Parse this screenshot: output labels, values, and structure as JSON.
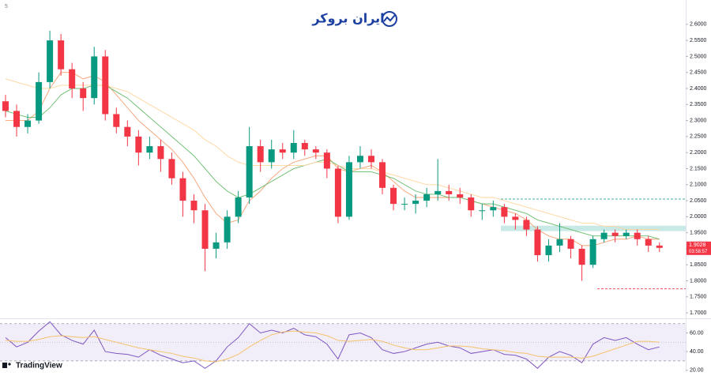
{
  "header": {
    "brand": "ایران بروکر",
    "platform": "TradingView",
    "interval": "5"
  },
  "chart_data": [
    {
      "type": "candlestick",
      "open": [
        2.36,
        2.33,
        2.28,
        2.3,
        2.42,
        2.55,
        2.46,
        2.4,
        2.37,
        2.5,
        2.32,
        2.28,
        2.25,
        2.2,
        2.22,
        2.18,
        2.12,
        2.05,
        2.02,
        1.9,
        1.92,
        2.0,
        2.06,
        2.22,
        2.17,
        2.21,
        2.2,
        2.23,
        2.21,
        2.2,
        2.15,
        2.0,
        2.17,
        2.19,
        2.17,
        2.09,
        2.04,
        2.04,
        2.05,
        2.07,
        2.08,
        2.07,
        2.06,
        2.02,
        2.02,
        2.03,
        2.0,
        1.99,
        1.96,
        1.88,
        1.91,
        1.93,
        1.9,
        1.85,
        1.93,
        1.95,
        1.94,
        1.95,
        1.93,
        1.91
      ],
      "high": [
        2.38,
        2.35,
        2.32,
        2.45,
        2.58,
        2.57,
        2.48,
        2.42,
        2.53,
        2.52,
        2.34,
        2.3,
        2.27,
        2.25,
        2.24,
        2.2,
        2.14,
        2.07,
        2.04,
        1.95,
        2.02,
        2.08,
        2.28,
        2.24,
        2.24,
        2.23,
        2.27,
        2.24,
        2.22,
        2.21,
        2.16,
        2.19,
        2.22,
        2.21,
        2.18,
        2.1,
        2.06,
        2.07,
        2.09,
        2.18,
        2.1,
        2.09,
        2.07,
        2.04,
        2.05,
        2.04,
        2.01,
        2.0,
        1.97,
        1.93,
        1.98,
        1.94,
        1.91,
        1.94,
        1.96,
        1.96,
        1.96,
        1.96,
        1.94,
        1.92
      ],
      "low": [
        2.31,
        2.25,
        2.26,
        2.29,
        2.4,
        2.44,
        2.37,
        2.33,
        2.35,
        2.3,
        2.26,
        2.22,
        2.16,
        2.18,
        2.14,
        2.1,
        2.0,
        1.98,
        1.83,
        1.87,
        1.9,
        1.98,
        2.04,
        2.14,
        2.15,
        2.18,
        2.18,
        2.19,
        2.18,
        2.12,
        1.98,
        1.99,
        2.15,
        2.15,
        2.07,
        2.02,
        2.02,
        2.01,
        2.03,
        2.05,
        2.05,
        2.04,
        2.0,
        1.99,
        2.0,
        1.98,
        1.96,
        1.94,
        1.86,
        1.86,
        1.89,
        1.87,
        1.8,
        1.84,
        1.92,
        1.92,
        1.93,
        1.91,
        1.89,
        1.89
      ],
      "close": [
        2.33,
        2.28,
        2.3,
        2.42,
        2.55,
        2.46,
        2.4,
        2.37,
        2.5,
        2.32,
        2.28,
        2.25,
        2.2,
        2.22,
        2.18,
        2.12,
        2.05,
        2.02,
        1.9,
        1.92,
        2.0,
        2.06,
        2.22,
        2.17,
        2.21,
        2.2,
        2.23,
        2.21,
        2.2,
        2.15,
        2.0,
        2.17,
        2.19,
        2.17,
        2.09,
        2.04,
        2.04,
        2.05,
        2.07,
        2.08,
        2.07,
        2.06,
        2.02,
        2.02,
        2.03,
        2.0,
        1.99,
        1.96,
        1.88,
        1.91,
        1.93,
        1.9,
        1.85,
        1.93,
        1.95,
        1.94,
        1.95,
        1.93,
        1.91,
        1.9028
      ],
      "up_color": "#089981",
      "down_color": "#f23645",
      "overlays": [
        {
          "color": "#f7a072",
          "values": [
            2.3,
            2.3,
            2.3,
            2.33,
            2.4,
            2.45,
            2.45,
            2.43,
            2.44,
            2.42,
            2.38,
            2.34,
            2.3,
            2.27,
            2.24,
            2.21,
            2.17,
            2.12,
            2.06,
            2.01,
            1.98,
            1.99,
            2.05,
            2.08,
            2.12,
            2.15,
            2.17,
            2.18,
            2.19,
            2.19,
            2.15,
            2.14,
            2.15,
            2.16,
            2.14,
            2.11,
            2.08,
            2.06,
            2.06,
            2.06,
            2.06,
            2.06,
            2.05,
            2.04,
            2.03,
            2.02,
            2.01,
            1.99,
            1.96,
            1.94,
            1.93,
            1.93,
            1.91,
            1.91,
            1.92,
            1.93,
            1.93,
            1.94,
            1.93,
            1.93
          ]
        },
        {
          "color": "#66bb6a",
          "values": [
            2.33,
            2.32,
            2.31,
            2.31,
            2.34,
            2.38,
            2.4,
            2.4,
            2.41,
            2.41,
            2.39,
            2.37,
            2.34,
            2.31,
            2.28,
            2.25,
            2.22,
            2.19,
            2.15,
            2.11,
            2.08,
            2.06,
            2.07,
            2.09,
            2.11,
            2.13,
            2.15,
            2.16,
            2.17,
            2.18,
            2.16,
            2.14,
            2.14,
            2.14,
            2.13,
            2.12,
            2.1,
            2.08,
            2.07,
            2.07,
            2.06,
            2.06,
            2.05,
            2.04,
            2.04,
            2.03,
            2.02,
            2.01,
            1.99,
            1.98,
            1.97,
            1.96,
            1.95,
            1.94,
            1.94,
            1.94,
            1.94,
            1.94,
            1.94,
            1.93
          ]
        },
        {
          "color": "#ffd59e",
          "values": [
            2.43,
            2.42,
            2.41,
            2.4,
            2.4,
            2.41,
            2.41,
            2.41,
            2.41,
            2.41,
            2.4,
            2.39,
            2.37,
            2.35,
            2.33,
            2.31,
            2.29,
            2.27,
            2.24,
            2.22,
            2.19,
            2.17,
            2.16,
            2.16,
            2.16,
            2.16,
            2.16,
            2.16,
            2.17,
            2.17,
            2.16,
            2.15,
            2.15,
            2.15,
            2.14,
            2.13,
            2.12,
            2.11,
            2.1,
            2.1,
            2.09,
            2.08,
            2.07,
            2.06,
            2.06,
            2.05,
            2.04,
            2.03,
            2.02,
            2.01,
            2.0,
            1.99,
            1.98,
            1.98,
            1.97,
            1.97,
            1.96,
            1.96,
            1.96,
            1.96
          ]
        }
      ],
      "levels": [
        {
          "value": 2.055,
          "color": "#089981"
        },
        {
          "value": 1.775,
          "color": "#f23645"
        }
      ],
      "zone": {
        "from": 1.955,
        "to": 1.972,
        "color": "#b2dfdb"
      },
      "last_price": 1.9028,
      "countdown": "03:58:57",
      "ylim": [
        1.683,
        2.676
      ],
      "yticks": [
        {
          "value": 1.7,
          "label": "1.7000"
        },
        {
          "value": 1.75,
          "label": "1.7500"
        },
        {
          "value": 1.8,
          "label": "1.8000"
        },
        {
          "value": 1.85,
          "label": "1.8500"
        },
        {
          "value": 1.9,
          "label": "1.9000"
        },
        {
          "value": 1.95,
          "label": "1.9500"
        },
        {
          "value": 2.0,
          "label": "2.0000"
        },
        {
          "value": 2.05,
          "label": "2.0500"
        },
        {
          "value": 2.1,
          "label": "2.1000"
        },
        {
          "value": 2.15,
          "label": "2.1500"
        },
        {
          "value": 2.2,
          "label": "2.2000"
        },
        {
          "value": 2.25,
          "label": "2.2500"
        },
        {
          "value": 2.3,
          "label": "2.3000"
        },
        {
          "value": 2.35,
          "label": "2.3500"
        },
        {
          "value": 2.4,
          "label": "2.4000"
        },
        {
          "value": 2.45,
          "label": "2.4500"
        },
        {
          "value": 2.5,
          "label": "2.5000"
        },
        {
          "value": 2.55,
          "label": "2.5500"
        },
        {
          "value": 2.6,
          "label": "2.6000"
        }
      ]
    },
    {
      "type": "line",
      "series": [
        {
          "color": "#7e57c2",
          "values": [
            55,
            45,
            50,
            62,
            72,
            58,
            52,
            48,
            63,
            40,
            38,
            37,
            34,
            42,
            36,
            32,
            28,
            30,
            22,
            30,
            45,
            55,
            70,
            60,
            63,
            60,
            65,
            58,
            56,
            48,
            32,
            58,
            60,
            55,
            42,
            38,
            40,
            44,
            48,
            50,
            46,
            44,
            38,
            40,
            42,
            37,
            36,
            32,
            22,
            34,
            40,
            36,
            28,
            48,
            55,
            52,
            55,
            48,
            42,
            45
          ]
        },
        {
          "color": "#f5c26b",
          "values": [
            52,
            51,
            51,
            53,
            56,
            57,
            56,
            55,
            56,
            53,
            50,
            47,
            44,
            42,
            40,
            38,
            35,
            33,
            30,
            29,
            32,
            37,
            45,
            52,
            58,
            61,
            62,
            61,
            60,
            57,
            52,
            51,
            52,
            53,
            51,
            47,
            44,
            42,
            42,
            44,
            46,
            46,
            45,
            43,
            42,
            41,
            39,
            38,
            35,
            34,
            34,
            34,
            33,
            35,
            39,
            43,
            47,
            51,
            51,
            50
          ]
        }
      ],
      "band": [
        30,
        70
      ],
      "midline": 50,
      "ylim": [
        18,
        74
      ],
      "yticks": [
        {
          "value": 20,
          "label": "20.00"
        },
        {
          "value": 40,
          "label": "40.00"
        },
        {
          "value": 60,
          "label": "60.00"
        }
      ]
    }
  ]
}
